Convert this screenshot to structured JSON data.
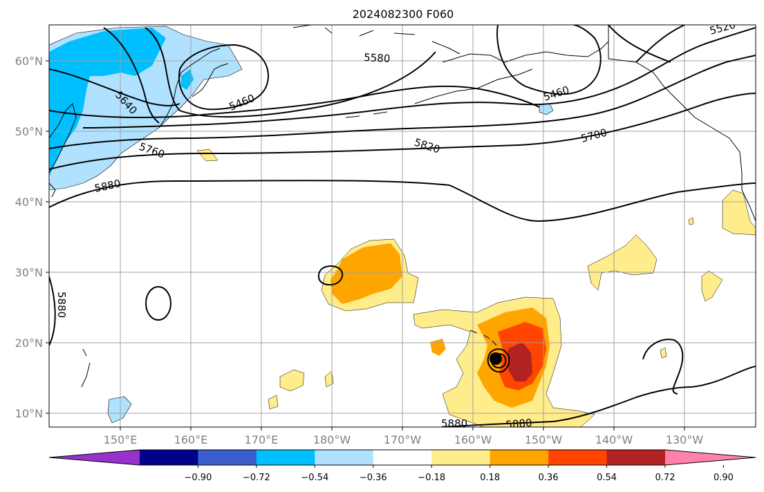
{
  "title": "2024082300 F060",
  "axes": {
    "lon_labels": [
      "150°E",
      "160°E",
      "170°E",
      "180°W",
      "170°W",
      "160°W",
      "150°W",
      "140°W",
      "130°W"
    ],
    "lat_labels": [
      "10°N",
      "20°N",
      "30°N",
      "40°N",
      "50°N",
      "60°N"
    ]
  },
  "contour_labels": [
    "5520",
    "5580",
    "5460",
    "5640",
    "5460",
    "5760",
    "5820",
    "5700",
    "5880",
    "5880",
    "5880",
    "5880"
  ],
  "colorbar": {
    "ticks": [
      "−0.90",
      "−0.72",
      "−0.54",
      "−0.36",
      "−0.18",
      "0.18",
      "0.36",
      "0.54",
      "0.72",
      "0.90"
    ],
    "colors": [
      "#9932cc",
      "#00008b",
      "#3a5fcd",
      "#00bfff",
      "#b0e2ff",
      "#ffffff",
      "#ffec8b",
      "#ffa500",
      "#ff4500",
      "#b22222",
      "#ff82ab"
    ]
  },
  "storm_marker": "storm-center-dot"
}
